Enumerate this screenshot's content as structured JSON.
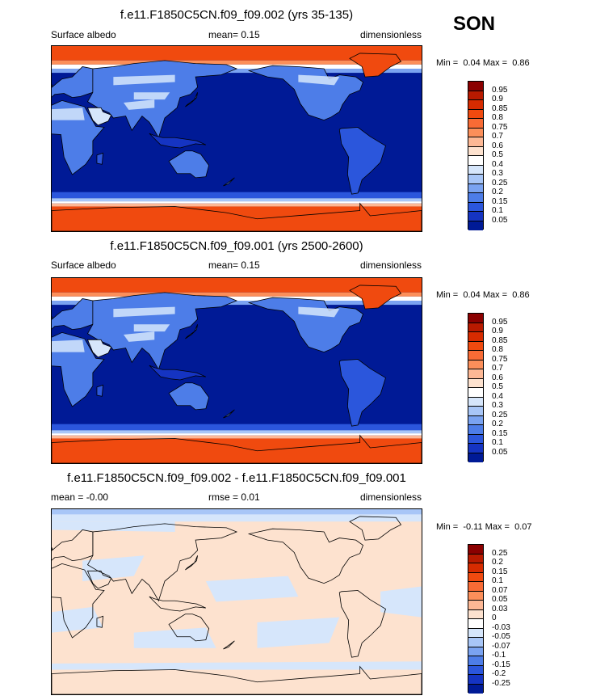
{
  "season": "SON",
  "panels": [
    {
      "id": "p1",
      "title": "f.e11.F1850C5CN.f09_f09.002 (yrs 35-135)",
      "left_label": "Surface albedo",
      "center_label": "mean=  0.15",
      "right_label": "dimensionless",
      "min_label": "Min =",
      "min_value": "0.04",
      "max_label": "Max =",
      "max_value": "0.86",
      "colorbar_labels": [
        "0.95",
        "0.9",
        "0.85",
        "0.8",
        "0.75",
        "0.7",
        "0.6",
        "0.5",
        "0.4",
        "0.3",
        "0.25",
        "0.2",
        "0.15",
        "0.1",
        "0.05"
      ],
      "colorbar_colors": [
        "#8b0000",
        "#b81a00",
        "#d62b00",
        "#f04a0f",
        "#f86b35",
        "#fc8f5a",
        "#fdb895",
        "#fde2cf",
        "#ffffff",
        "#d6e6fb",
        "#a8c6f7",
        "#7aa3f1",
        "#4d7de8",
        "#2b56dc",
        "#1534c2",
        "#001a96"
      ],
      "map_style": "albedo"
    },
    {
      "id": "p2",
      "title": "f.e11.F1850C5CN.f09_f09.001 (yrs 2500-2600)",
      "left_label": "Surface albedo",
      "center_label": "mean=  0.15",
      "right_label": "dimensionless",
      "min_label": "Min =",
      "min_value": "0.04",
      "max_label": "Max =",
      "max_value": "0.86",
      "colorbar_labels": [
        "0.95",
        "0.9",
        "0.85",
        "0.8",
        "0.75",
        "0.7",
        "0.6",
        "0.5",
        "0.4",
        "0.3",
        "0.25",
        "0.2",
        "0.15",
        "0.1",
        "0.05"
      ],
      "colorbar_colors": [
        "#8b0000",
        "#b81a00",
        "#d62b00",
        "#f04a0f",
        "#f86b35",
        "#fc8f5a",
        "#fdb895",
        "#fde2cf",
        "#ffffff",
        "#d6e6fb",
        "#a8c6f7",
        "#7aa3f1",
        "#4d7de8",
        "#2b56dc",
        "#1534c2",
        "#001a96"
      ],
      "map_style": "albedo"
    },
    {
      "id": "p3",
      "title": "f.e11.F1850C5CN.f09_f09.002 - f.e11.F1850C5CN.f09_f09.001",
      "left_label": "mean =  -0.00",
      "center_label": "rmse =  0.01",
      "right_label": "dimensionless",
      "min_label": "Min =",
      "min_value": "-0.11",
      "max_label": "Max =",
      "max_value": "0.07",
      "colorbar_labels": [
        "0.25",
        "0.2",
        "0.15",
        "0.1",
        "0.07",
        "0.05",
        "0.03",
        "0",
        "-0.03",
        "-0.05",
        "-0.07",
        "-0.1",
        "-0.15",
        "-0.2",
        "-0.25"
      ],
      "colorbar_colors": [
        "#8b0000",
        "#b81a00",
        "#d62b00",
        "#f04a0f",
        "#f86b35",
        "#fc8f5a",
        "#fdb895",
        "#fde2cf",
        "#ffffff",
        "#d6e6fb",
        "#a8c6f7",
        "#7aa3f1",
        "#4d7de8",
        "#2b56dc",
        "#1534c2",
        "#001a96"
      ],
      "map_style": "diff"
    }
  ]
}
